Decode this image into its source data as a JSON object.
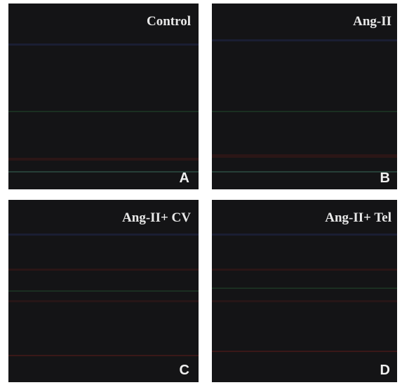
{
  "panels": [
    {
      "title": "Control",
      "letter": "A"
    },
    {
      "title": "Ang-II",
      "letter": "B"
    },
    {
      "title": "Ang-II+ CV",
      "letter": "C"
    },
    {
      "title": "Ang-II+ Tel",
      "letter": "D"
    }
  ]
}
